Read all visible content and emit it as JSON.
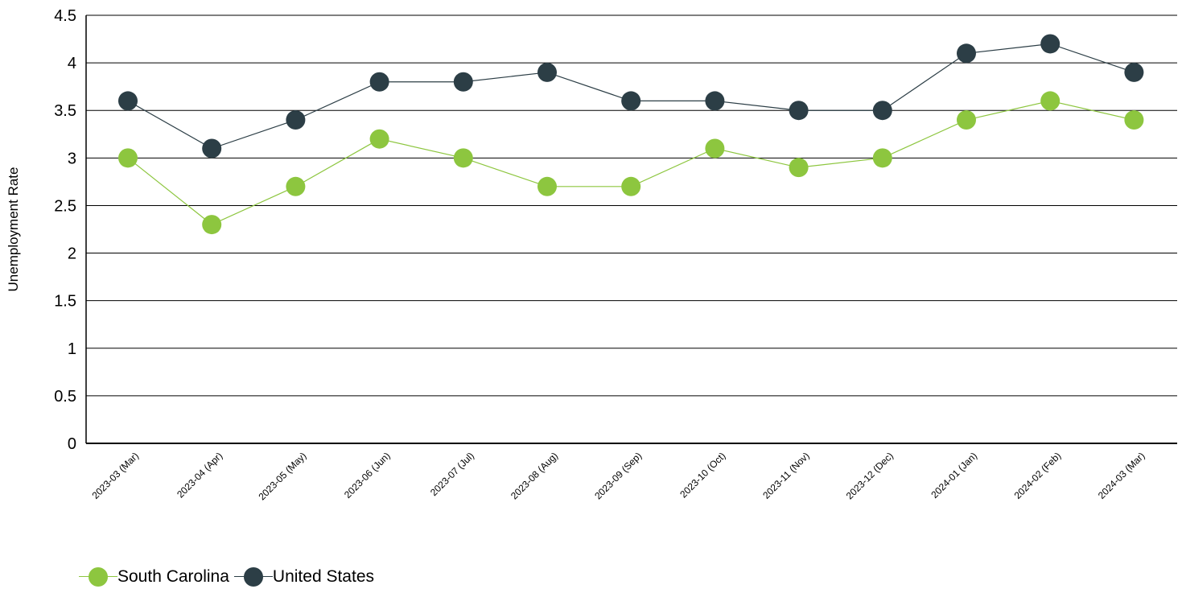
{
  "chart_data": {
    "type": "line",
    "categories": [
      "2023-03 (Mar)",
      "2023-04 (Apr)",
      "2023-05 (May)",
      "2023-06 (Jun)",
      "2023-07 (Jul)",
      "2023-08 (Aug)",
      "2023-09 (Sep)",
      "2023-10 (Oct)",
      "2023-11 (Nov)",
      "2023-12 (Dec)",
      "2024-01 (Jan)",
      "2024-02 (Feb)",
      "2024-03 (Mar)"
    ],
    "series": [
      {
        "name": "South Carolina",
        "color": "#8dc63f",
        "values": [
          3.0,
          2.3,
          2.7,
          3.2,
          3.0,
          2.7,
          2.7,
          3.1,
          2.9,
          3.0,
          3.4,
          3.6,
          3.4
        ]
      },
      {
        "name": "United States",
        "color": "#2c3e46",
        "values": [
          3.6,
          3.1,
          3.4,
          3.8,
          3.8,
          3.9,
          3.6,
          3.6,
          3.5,
          3.5,
          4.1,
          4.2,
          3.9
        ]
      }
    ],
    "title": "",
    "xlabel": "",
    "ylabel": "Unemployment Rate",
    "ylim": [
      0,
      4.5
    ],
    "yticks": [
      "0",
      "0.5",
      "1",
      "1.5",
      "2",
      "2.5",
      "3",
      "3.5",
      "4",
      "4.5"
    ],
    "grid": "horizontal",
    "legend_position": "bottom-left"
  }
}
